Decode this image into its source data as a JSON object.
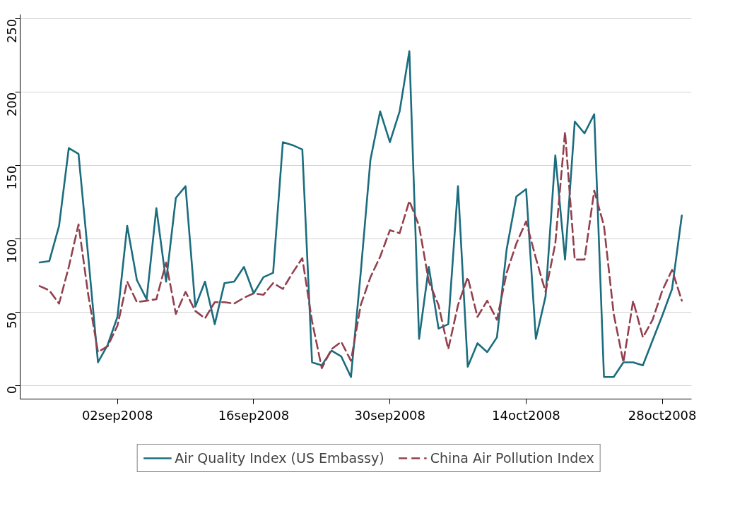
{
  "chart_data": {
    "type": "line",
    "x": [
      "2008-08-25",
      "2008-08-26",
      "2008-08-27",
      "2008-08-28",
      "2008-08-29",
      "2008-08-30",
      "2008-08-31",
      "2008-09-01",
      "2008-09-02",
      "2008-09-03",
      "2008-09-04",
      "2008-09-05",
      "2008-09-06",
      "2008-09-07",
      "2008-09-08",
      "2008-09-09",
      "2008-09-10",
      "2008-09-11",
      "2008-09-12",
      "2008-09-13",
      "2008-09-14",
      "2008-09-15",
      "2008-09-16",
      "2008-09-17",
      "2008-09-18",
      "2008-09-19",
      "2008-09-20",
      "2008-09-21",
      "2008-09-22",
      "2008-09-23",
      "2008-09-24",
      "2008-09-25",
      "2008-09-26",
      "2008-09-27",
      "2008-09-28",
      "2008-09-29",
      "2008-09-30",
      "2008-10-01",
      "2008-10-02",
      "2008-10-03",
      "2008-10-04",
      "2008-10-05",
      "2008-10-06",
      "2008-10-07",
      "2008-10-08",
      "2008-10-09",
      "2008-10-10",
      "2008-10-11",
      "2008-10-12",
      "2008-10-13",
      "2008-10-14",
      "2008-10-15",
      "2008-10-16",
      "2008-10-17",
      "2008-10-18",
      "2008-10-19",
      "2008-10-20",
      "2008-10-21",
      "2008-10-22",
      "2008-10-23",
      "2008-10-24",
      "2008-10-25",
      "2008-10-26",
      "2008-10-27",
      "2008-10-28",
      "2008-10-29",
      "2008-10-30"
    ],
    "series": [
      {
        "name": "Air Quality Index (US Embassy)",
        "color": "#1b6d7e",
        "line_style": "solid",
        "values": [
          84,
          85,
          109,
          162,
          158,
          88,
          16,
          28,
          47,
          109,
          72,
          59,
          121,
          71,
          128,
          136,
          54,
          71,
          42,
          70,
          71,
          81,
          63,
          74,
          77,
          166,
          164,
          161,
          16,
          14,
          24,
          20,
          6,
          77,
          154,
          187,
          166,
          187,
          228,
          32,
          81,
          39,
          42,
          136,
          13,
          29,
          23,
          33,
          93,
          129,
          134,
          32,
          61,
          157,
          86,
          180,
          172,
          185,
          6,
          6,
          16,
          16,
          14,
          31,
          48,
          66,
          116
        ]
      },
      {
        "name": "China Air Pollution Index",
        "color": "#93404e",
        "line_style": "dashed",
        "values": [
          68,
          65,
          56,
          81,
          110,
          62,
          23,
          27,
          41,
          71,
          57,
          58,
          59,
          84,
          49,
          64,
          51,
          46,
          57,
          57,
          56,
          60,
          63,
          62,
          70,
          66,
          77,
          87,
          44,
          12,
          25,
          30,
          17,
          55,
          74,
          88,
          106,
          104,
          126,
          109,
          71,
          55,
          25,
          55,
          74,
          47,
          58,
          45,
          77,
          97,
          112,
          87,
          64,
          97,
          173,
          86,
          86,
          133,
          109,
          49,
          16,
          58,
          33,
          45,
          65,
          79,
          58
        ]
      }
    ],
    "xlim": [
      "2008-08-23",
      "2008-10-31"
    ],
    "xticks": [
      {
        "value": "2008-09-02",
        "label": "02sep2008"
      },
      {
        "value": "2008-09-16",
        "label": "16sep2008"
      },
      {
        "value": "2008-09-30",
        "label": "30sep2008"
      },
      {
        "value": "2008-10-14",
        "label": "14oct2008"
      },
      {
        "value": "2008-10-28",
        "label": "28oct2008"
      }
    ],
    "ylim": [
      -9,
      253
    ],
    "yticks": [
      0,
      50,
      100,
      150,
      200,
      250
    ],
    "grid": "y",
    "legend": "bottom",
    "marker": "none"
  }
}
